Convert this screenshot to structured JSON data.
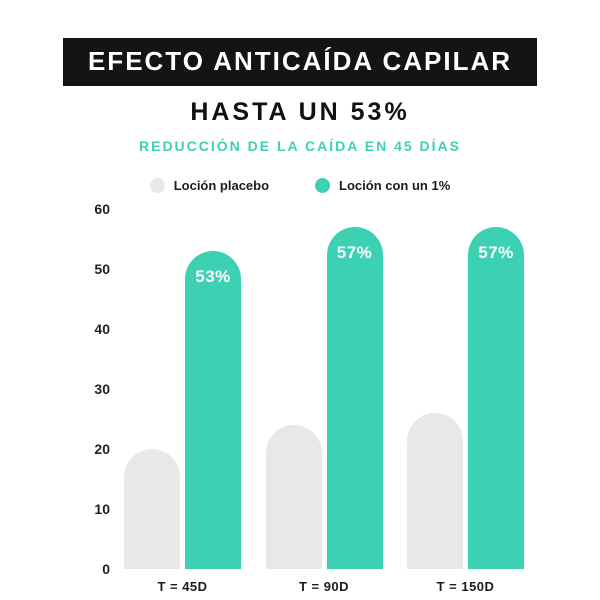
{
  "header": {
    "banner": "EFECTO ANTICAÍDA CAPILAR",
    "subtitle": "HASTA UN 53%",
    "tagline": "REDUCCIÓN DE LA CAÍDA EN 45 DÍAS"
  },
  "colors": {
    "banner_bg": "#141414",
    "teal": "#3dd1b3",
    "gray": "#e9e7e7",
    "text_dark": "#1c1c1c"
  },
  "chart_data": {
    "type": "bar",
    "title": "EFECTO ANTICAÍDA CAPILAR — HASTA UN 53% — REDUCCIÓN DE LA CAÍDA EN 45 DÍAS",
    "categories": [
      "T = 45D",
      "T = 90D",
      "T = 150D"
    ],
    "series": [
      {
        "name": "Loción placebo",
        "color": "#e9e7e7",
        "values": [
          20,
          24,
          26
        ],
        "labels": [
          "",
          "",
          ""
        ]
      },
      {
        "name": "Loción con un 1%",
        "color": "#3dd1b3",
        "values": [
          53,
          57,
          57
        ],
        "labels": [
          "53%",
          "57%",
          "57%"
        ]
      }
    ],
    "ylim": [
      0,
      60
    ],
    "yticks": [
      60,
      50,
      40,
      30,
      20,
      10,
      0
    ],
    "xlabel": "",
    "ylabel": "",
    "grid": false,
    "legend_position": "top"
  }
}
